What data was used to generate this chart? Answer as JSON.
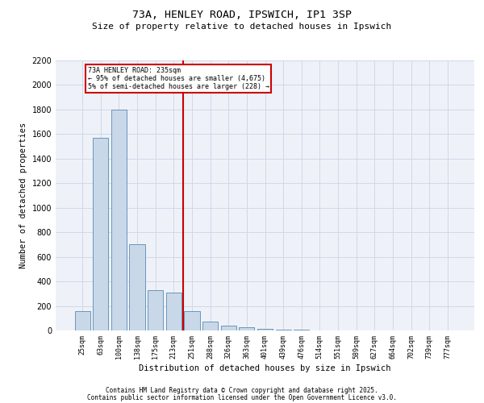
{
  "title1": "73A, HENLEY ROAD, IPSWICH, IP1 3SP",
  "title2": "Size of property relative to detached houses in Ipswich",
  "xlabel": "Distribution of detached houses by size in Ipswich",
  "ylabel": "Number of detached properties",
  "categories": [
    "25sqm",
    "63sqm",
    "100sqm",
    "138sqm",
    "175sqm",
    "213sqm",
    "251sqm",
    "288sqm",
    "326sqm",
    "363sqm",
    "401sqm",
    "439sqm",
    "476sqm",
    "514sqm",
    "551sqm",
    "589sqm",
    "627sqm",
    "664sqm",
    "702sqm",
    "739sqm",
    "777sqm"
  ],
  "values": [
    160,
    1570,
    1800,
    700,
    330,
    310,
    160,
    75,
    40,
    25,
    15,
    8,
    5,
    3,
    2,
    1,
    1,
    0,
    0,
    0,
    0
  ],
  "bar_color": "#c8d8e8",
  "bar_edge_color": "#5a8ab5",
  "vline_x_idx": 6,
  "vline_color": "#cc0000",
  "annotation_text": "73A HENLEY ROAD: 235sqm\n← 95% of detached houses are smaller (4,675)\n5% of semi-detached houses are larger (228) →",
  "annotation_box_color": "#cc0000",
  "ylim": [
    0,
    2200
  ],
  "yticks": [
    0,
    200,
    400,
    600,
    800,
    1000,
    1200,
    1400,
    1600,
    1800,
    2000,
    2200
  ],
  "grid_color": "#d0d8e8",
  "bg_color": "#eef2f8",
  "footer1": "Contains HM Land Registry data © Crown copyright and database right 2025.",
  "footer2": "Contains public sector information licensed under the Open Government Licence v3.0."
}
